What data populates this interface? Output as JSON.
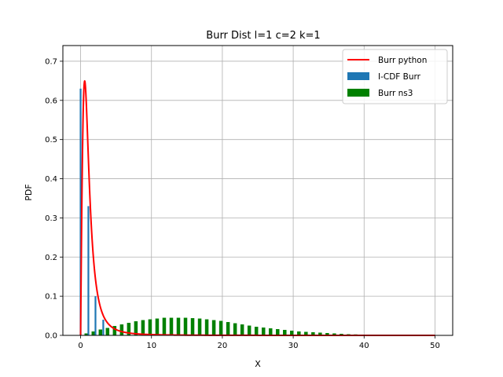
{
  "chart_data": {
    "type": "bar",
    "title": "Burr Dist l=1 c=2 k=1",
    "xlabel": "X",
    "ylabel": "PDF",
    "xlim": [
      -2.5,
      52.5
    ],
    "ylim": [
      0,
      0.74
    ],
    "xticks": [
      0,
      10,
      20,
      30,
      40,
      50
    ],
    "yticks": [
      0.0,
      0.1,
      0.2,
      0.3,
      0.4,
      0.5,
      0.6,
      0.7
    ],
    "grid": true,
    "legend_position": "top-right",
    "colors": {
      "line": "#ff0000",
      "icdf": "#1f77b4",
      "ns3": "#008000",
      "grid": "#b0b0b0"
    },
    "series": [
      {
        "name": "Burr python",
        "kind": "line",
        "params": {
          "c": 2,
          "k": 1,
          "lambda": 1
        },
        "x_range": [
          0,
          50
        ]
      },
      {
        "name": "I-CDF Burr",
        "kind": "histogram",
        "x": [
          0.0,
          1.1,
          2.1,
          3.2
        ],
        "values": [
          0.63,
          0.33,
          0.1,
          0.04
        ]
      },
      {
        "name": "Burr ns3",
        "kind": "histogram",
        "x": [
          0.8,
          1.8,
          2.8,
          3.8,
          4.8,
          5.8,
          6.8,
          7.8,
          8.8,
          9.8,
          10.8,
          11.8,
          12.8,
          13.8,
          14.8,
          15.8,
          16.8,
          17.8,
          18.8,
          19.8,
          20.8,
          21.8,
          22.8,
          23.8,
          24.8,
          25.8,
          26.8,
          27.8,
          28.8,
          29.8,
          30.8,
          31.8,
          32.8,
          33.8,
          34.8,
          35.8,
          36.8,
          37.8,
          38.8,
          39.8,
          40.8,
          41.8,
          42.8,
          43.8,
          44.8,
          45.8,
          46.8,
          47.8,
          48.8,
          49.8
        ],
        "values": [
          0.005,
          0.01,
          0.015,
          0.019,
          0.024,
          0.028,
          0.032,
          0.036,
          0.039,
          0.041,
          0.043,
          0.045,
          0.045,
          0.045,
          0.045,
          0.044,
          0.043,
          0.041,
          0.039,
          0.037,
          0.034,
          0.031,
          0.028,
          0.025,
          0.022,
          0.02,
          0.018,
          0.016,
          0.014,
          0.012,
          0.01,
          0.009,
          0.008,
          0.007,
          0.006,
          0.005,
          0.004,
          0.003,
          0.0025,
          0.002,
          0.0015,
          0.001,
          0.001,
          0.0008,
          0.0006,
          0.0005,
          0.0004,
          0.0003,
          0.0002,
          0.0001
        ]
      }
    ]
  }
}
